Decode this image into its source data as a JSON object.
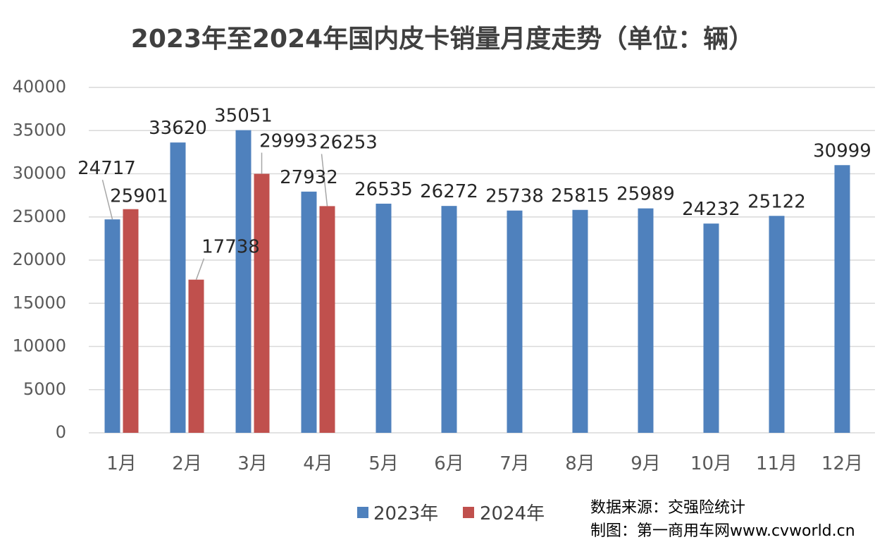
{
  "chart_data": {
    "type": "bar",
    "title": "2023年至2024年国内皮卡销量月度走势（单位：辆）",
    "categories": [
      "1月",
      "2月",
      "3月",
      "4月",
      "5月",
      "6月",
      "7月",
      "8月",
      "9月",
      "10月",
      "11月",
      "12月"
    ],
    "series": [
      {
        "name": "2023年",
        "color": "#4f81bd",
        "values": [
          24717,
          33620,
          35051,
          27932,
          26535,
          26272,
          25738,
          25815,
          25989,
          24232,
          25122,
          30999
        ]
      },
      {
        "name": "2024年",
        "color": "#c0504d",
        "values": [
          25901,
          17738,
          29993,
          26253,
          null,
          null,
          null,
          null,
          null,
          null,
          null,
          null
        ]
      }
    ],
    "ylim": [
      0,
      40000
    ],
    "yticks": [
      0,
      5000,
      10000,
      15000,
      20000,
      25000,
      30000,
      35000,
      40000
    ],
    "grid": true,
    "legend_position": "bottom"
  },
  "footer": {
    "source": "数据来源：交强险统计",
    "credit": "制图：第一商用车网www.cvworld.cn"
  }
}
